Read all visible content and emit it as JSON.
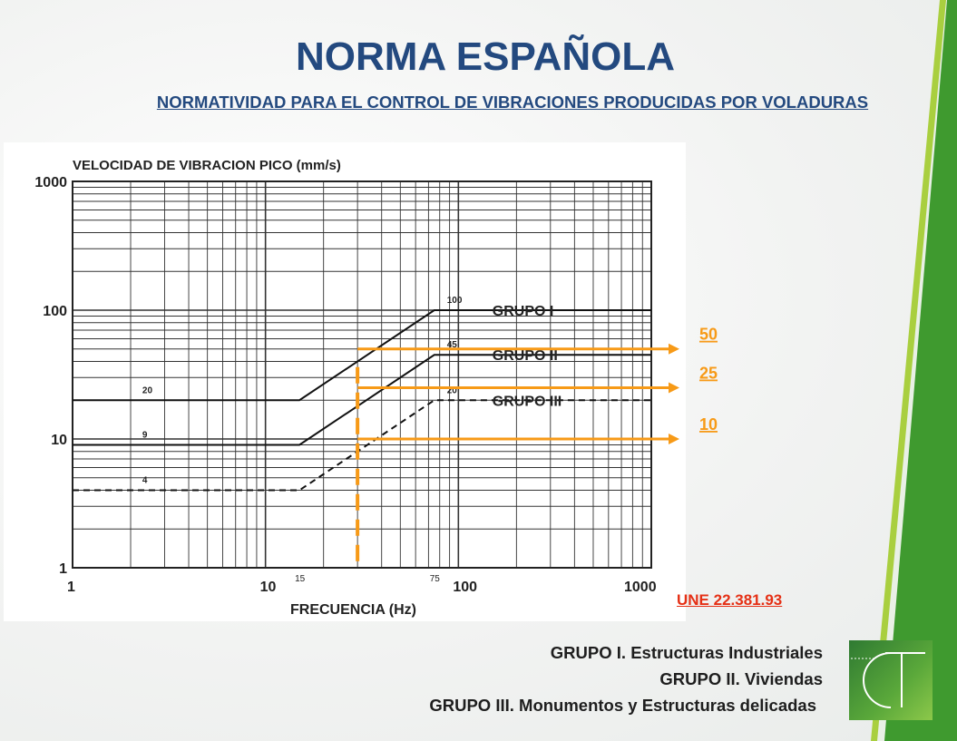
{
  "slide": {
    "title": "NORMA ESPAÑOLA",
    "subtitle": "NORMATIVIDAD PARA  EL CONTROL DE VIBRACIONES PRODUCIDAS POR VOLADURAS",
    "standard_ref": "UNE 22.381.93",
    "groups": [
      "GRUPO I. Estructuras Industriales",
      "GRUPO II. Viviendas",
      "GRUPO III. Monumentos y Estructuras delicadas"
    ],
    "colors": {
      "title": "#23497f",
      "accent_orange": "#f79a17",
      "standard_red": "#e53015",
      "green": "#3f9a2f"
    },
    "logo_icon": "congreso-tecnico-ct-logo"
  },
  "chart_data": {
    "type": "line",
    "title": "VELOCIDAD DE VIBRACION PICO (mm/s)",
    "xlabel": "FRECUENCIA (Hz)",
    "ylabel": "VELOCIDAD DE VIBRACION PICO (mm/s)",
    "xscale": "log",
    "yscale": "log",
    "xlim": [
      1,
      1000
    ],
    "ylim": [
      1,
      1000
    ],
    "x_tick_labels": [
      "1",
      "10",
      "100",
      "1000"
    ],
    "y_tick_labels": [
      "1",
      "10",
      "100",
      "1000"
    ],
    "x_marks": [
      "15",
      "75"
    ],
    "grid": true,
    "series": [
      {
        "name": "GRUPO I",
        "style": "solid",
        "x": [
          1,
          15,
          75,
          1000
        ],
        "y": [
          20,
          20,
          100,
          100
        ]
      },
      {
        "name": "GRUPO II",
        "style": "solid",
        "x": [
          1,
          15,
          75,
          1000
        ],
        "y": [
          9,
          9,
          45,
          45
        ]
      },
      {
        "name": "GRUPO III",
        "style": "dashed",
        "x": [
          1,
          15,
          75,
          1000
        ],
        "y": [
          4,
          4,
          20,
          20
        ]
      }
    ],
    "annotations": [
      {
        "text": "20",
        "x": 2.3,
        "y": 20
      },
      {
        "text": "9",
        "x": 2.3,
        "y": 9
      },
      {
        "text": "4",
        "x": 2.3,
        "y": 4
      },
      {
        "text": "100",
        "x": 75,
        "y": 100
      },
      {
        "text": "45",
        "x": 75,
        "y": 45
      },
      {
        "text": "20",
        "x": 75,
        "y": 20
      }
    ],
    "overlay": {
      "vertical_x": 30,
      "arrows": [
        {
          "label": "50",
          "y": 50
        },
        {
          "label": "25",
          "y": 25
        },
        {
          "label": "10",
          "y": 10
        }
      ]
    }
  }
}
